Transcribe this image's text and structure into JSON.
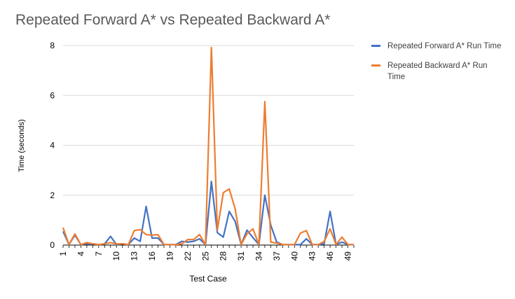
{
  "colors": {
    "forward": "#4472C4",
    "backward": "#ED7D31",
    "grid": "#D9D9D9",
    "tick": "#000000"
  },
  "chart_data": {
    "type": "line",
    "title": "Repeated Forward A* vs Repeated Backward A*",
    "xlabel": "Test Case",
    "ylabel": "Time (seconds)",
    "ylim": [
      0,
      8
    ],
    "yticks": [
      0,
      2,
      4,
      6,
      8
    ],
    "grid": true,
    "legend_position": "right",
    "x": [
      1,
      2,
      3,
      4,
      5,
      6,
      7,
      8,
      9,
      10,
      11,
      12,
      13,
      14,
      15,
      16,
      17,
      18,
      19,
      20,
      21,
      22,
      23,
      24,
      25,
      26,
      27,
      28,
      29,
      30,
      31,
      32,
      33,
      34,
      35,
      36,
      37,
      38,
      39,
      40,
      41,
      42,
      43,
      44,
      45,
      46,
      47,
      48,
      49,
      50
    ],
    "xtick_labels": [
      "1",
      "4",
      "7",
      "10",
      "13",
      "16",
      "19",
      "22",
      "25",
      "28",
      "31",
      "34",
      "37",
      "40",
      "43",
      "46",
      "49"
    ],
    "series": [
      {
        "name": "Repeated Forward A* Run Time",
        "color_key": "forward",
        "values": [
          0.55,
          0.02,
          0.4,
          0.02,
          0.05,
          0.05,
          0.02,
          0.05,
          0.35,
          0.02,
          0.05,
          0.02,
          0.28,
          0.15,
          1.55,
          0.28,
          0.28,
          0.02,
          0.02,
          0.02,
          0.15,
          0.12,
          0.15,
          0.25,
          0.02,
          2.55,
          0.5,
          0.32,
          1.35,
          0.95,
          0.02,
          0.6,
          0.3,
          0.02,
          2.0,
          0.8,
          0.12,
          0.02,
          0.02,
          0.02,
          0.02,
          0.25,
          0.02,
          0.02,
          0.05,
          1.35,
          0.02,
          0.12,
          0.02,
          0.02
        ]
      },
      {
        "name": "Repeated Backward A* Run Time",
        "color_key": "backward",
        "values": [
          0.7,
          0.02,
          0.45,
          0.02,
          0.1,
          0.05,
          0.02,
          0.05,
          0.1,
          0.05,
          0.05,
          0.02,
          0.58,
          0.62,
          0.42,
          0.4,
          0.42,
          0.02,
          0.02,
          0.02,
          0.05,
          0.22,
          0.22,
          0.42,
          0.02,
          7.92,
          0.6,
          2.1,
          2.25,
          1.45,
          0.02,
          0.45,
          0.65,
          0.02,
          5.75,
          0.12,
          0.08,
          0.02,
          0.02,
          0.02,
          0.48,
          0.58,
          0.02,
          0.02,
          0.15,
          0.65,
          0.02,
          0.32,
          0.02,
          0.02
        ]
      }
    ]
  }
}
